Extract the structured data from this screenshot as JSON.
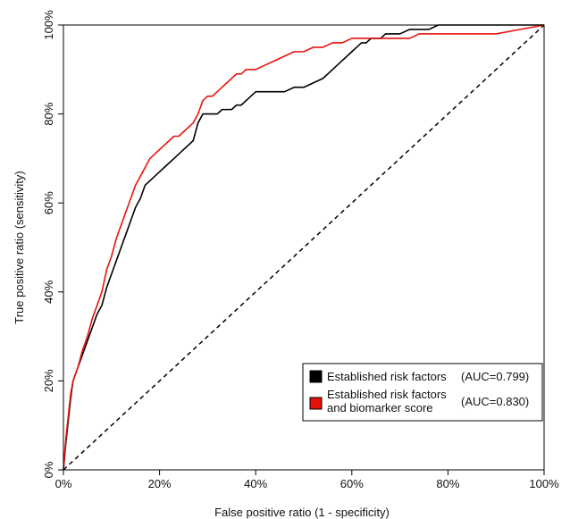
{
  "chart_data": {
    "type": "line",
    "xlabel": "False positive ratio (1 - specificity)",
    "ylabel": "True positive ratio (sensitivity)",
    "xlim": [
      0,
      100
    ],
    "ylim": [
      0,
      100
    ],
    "xticks": [
      "0%",
      "20%",
      "40%",
      "60%",
      "80%",
      "100%"
    ],
    "yticks": [
      "0%",
      "20%",
      "40%",
      "60%",
      "80%",
      "100%"
    ],
    "tick_values": [
      0,
      20,
      40,
      60,
      80,
      100
    ],
    "grid": false,
    "legend_position": "bottom-right",
    "series": [
      {
        "name": "Established risk factors",
        "auc_label": "(AUC=0.799)",
        "color": "#000000",
        "x": [
          0,
          0.5,
          1,
          1.5,
          2,
          3,
          4,
          5,
          6,
          7,
          8,
          9,
          10,
          11,
          12,
          13,
          14,
          15,
          16,
          17,
          18,
          19,
          20,
          21,
          22,
          23,
          24,
          25,
          26,
          27,
          28,
          29,
          30,
          31,
          32,
          33,
          34,
          35,
          36,
          37,
          38,
          39,
          40,
          42,
          44,
          46,
          48,
          50,
          52,
          54,
          55,
          56,
          57,
          58,
          59,
          60,
          61,
          62,
          63,
          64,
          65,
          66,
          67,
          68,
          70,
          72,
          74,
          76,
          78,
          80,
          85,
          90,
          95,
          100
        ],
        "y": [
          0,
          6,
          11,
          16,
          20,
          23,
          26,
          29,
          32,
          35,
          37,
          41,
          44,
          47,
          50,
          53,
          56,
          59,
          61,
          64,
          65,
          66,
          67,
          68,
          69,
          70,
          71,
          72,
          73,
          74,
          78,
          80,
          80,
          80,
          80,
          81,
          81,
          81,
          82,
          82,
          83,
          84,
          85,
          85,
          85,
          85,
          86,
          86,
          87,
          88,
          89,
          90,
          91,
          92,
          93,
          94,
          95,
          96,
          96,
          97,
          97,
          97,
          98,
          98,
          98,
          99,
          99,
          99,
          100,
          100,
          100,
          100,
          100,
          100
        ]
      },
      {
        "name": "Established risk factors and biomarker score",
        "auc_label": "(AUC=0.830)",
        "color": "#e8120c",
        "x": [
          0,
          0.5,
          1,
          1.5,
          2,
          3,
          4,
          5,
          6,
          7,
          8,
          9,
          10,
          11,
          12,
          13,
          14,
          15,
          16,
          17,
          18,
          19,
          20,
          21,
          22,
          23,
          24,
          25,
          26,
          27,
          28,
          29,
          30,
          31,
          32,
          33,
          34,
          35,
          36,
          37,
          38,
          39,
          40,
          42,
          44,
          46,
          48,
          50,
          52,
          54,
          56,
          58,
          60,
          62,
          64,
          66,
          68,
          70,
          72,
          74,
          76,
          78,
          80,
          85,
          90,
          95,
          100
        ],
        "y": [
          0,
          7,
          12,
          17,
          20,
          23,
          27,
          30,
          34,
          37,
          40,
          45,
          48,
          52,
          55,
          58,
          61,
          64,
          66,
          68,
          70,
          71,
          72,
          73,
          74,
          75,
          75,
          76,
          77,
          78,
          80,
          83,
          84,
          84,
          85,
          86,
          87,
          88,
          89,
          89,
          90,
          90,
          90,
          91,
          92,
          93,
          94,
          94,
          95,
          95,
          96,
          96,
          97,
          97,
          97,
          97,
          97,
          97,
          97,
          98,
          98,
          98,
          98,
          98,
          98,
          99,
          100
        ]
      }
    ],
    "reference_line": {
      "x": [
        0,
        100
      ],
      "y": [
        0,
        100
      ],
      "style": "dashed",
      "color": "#000000"
    }
  }
}
